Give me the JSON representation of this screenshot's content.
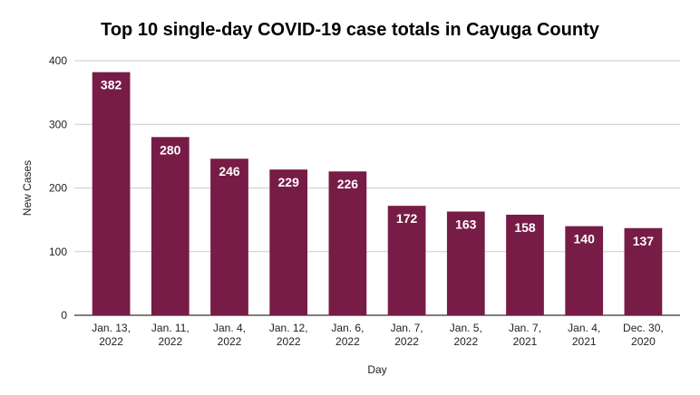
{
  "chart_data": {
    "type": "bar",
    "title": "Top 10 single-day COVID-19 case totals in Cayuga County",
    "xlabel": "Day",
    "ylabel": "New Cases",
    "ylim": [
      0,
      400
    ],
    "yticks": [
      0,
      100,
      200,
      300,
      400
    ],
    "grid": true,
    "legend": "none",
    "categories": [
      [
        "Jan. 13,",
        "2022"
      ],
      [
        "Jan. 11,",
        "2022"
      ],
      [
        "Jan. 4,",
        "2022"
      ],
      [
        "Jan. 12,",
        "2022"
      ],
      [
        "Jan. 6,",
        "2022"
      ],
      [
        "Jan. 7,",
        "2022"
      ],
      [
        "Jan. 5,",
        "2022"
      ],
      [
        "Jan. 7,",
        "2021"
      ],
      [
        "Jan. 4,",
        "2021"
      ],
      [
        "Dec. 30,",
        "2020"
      ]
    ],
    "values": [
      382,
      280,
      246,
      229,
      226,
      172,
      163,
      158,
      140,
      137
    ],
    "bar_color": "#771c46",
    "grid_color": "#cccccc",
    "axis_color": "#333333"
  }
}
